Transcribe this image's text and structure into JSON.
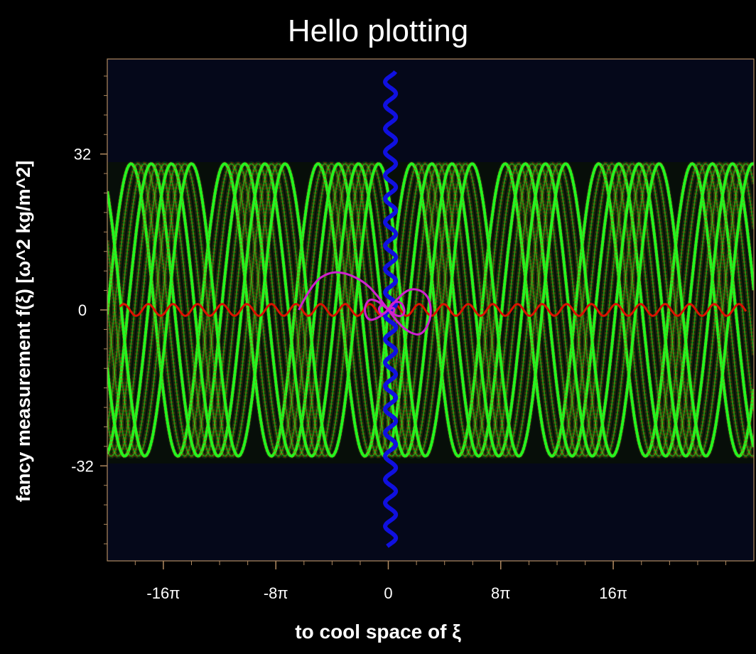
{
  "chart_data": {
    "type": "line",
    "title": "Hello plotting",
    "xlabel": "to cool space of ξ",
    "ylabel": "fancy measurement f(ξ) [ω^2 kg/m^2]",
    "xlim": [
      -62.8,
      81.7
    ],
    "ylim": [
      -51.5,
      51.5
    ],
    "xticks": [
      {
        "value": -50.27,
        "label": "-16π"
      },
      {
        "value": -25.13,
        "label": "-8π"
      },
      {
        "value": 0,
        "label": "0"
      },
      {
        "value": 25.13,
        "label": "8π"
      },
      {
        "value": 50.27,
        "label": "16π"
      }
    ],
    "yticks": [
      {
        "value": 32,
        "label": "32"
      },
      {
        "value": 0,
        "label": "0"
      },
      {
        "value": -32,
        "label": "-32"
      }
    ],
    "grid": false,
    "legend": "none",
    "colors": {
      "background": "#000000",
      "plot_area": "#05081a",
      "frame": "#b08a60",
      "green": "#22ff22",
      "red": "#dd1100",
      "blue": "#1010e0",
      "magenta": "#d020d0"
    },
    "series": [
      {
        "style": "green-red sine bundle",
        "amplitude": 30,
        "period": 20.9,
        "x_range": [
          -62.8,
          81.7
        ],
        "phase_shifts": [
          0,
          1.5,
          3.0,
          4.5,
          6.0,
          7.5,
          9.0,
          10.5,
          12.0,
          13.5
        ]
      },
      {
        "style": "red small wave",
        "amplitude": 1.2,
        "period": 5.5,
        "x_range": [
          -60,
          80
        ]
      },
      {
        "style": "blue vertical wave",
        "x_center": 0.5,
        "x_amplitude": 1.2,
        "y_range": [
          -48.5,
          49
        ]
      },
      {
        "style": "magenta loop curve",
        "points": [
          [
            -20,
            0
          ],
          [
            -17,
            5.5
          ],
          [
            -13,
            7.9
          ],
          [
            -9,
            7.5
          ],
          [
            -5,
            5.5
          ],
          [
            -2.5,
            3
          ],
          [
            0,
            0
          ],
          [
            2.5,
            -3
          ],
          [
            5,
            -4.8
          ],
          [
            7.5,
            -5.2
          ],
          [
            9.5,
            -2
          ],
          [
            9.5,
            1.5
          ],
          [
            8,
            3.8
          ],
          [
            5,
            4.5
          ],
          [
            2.5,
            2.8
          ],
          [
            0,
            0
          ],
          [
            -2.5,
            -1.8
          ],
          [
            -4.5,
            -2.2
          ],
          [
            -5.5,
            0
          ],
          [
            -4.5,
            2.2
          ],
          [
            -2.5,
            2.0
          ],
          [
            0,
            0
          ],
          [
            2.2,
            -1.5
          ],
          [
            3.8,
            -0.8
          ],
          [
            3.2,
            1.5
          ],
          [
            1.2,
            1.8
          ],
          [
            0,
            0
          ],
          [
            -1.5,
            -1.2
          ],
          [
            -2.3,
            0.3
          ],
          [
            -1.3,
            1.2
          ],
          [
            0,
            0
          ],
          [
            1.2,
            -0.8
          ],
          [
            1.4,
            0.6
          ],
          [
            0,
            0
          ]
        ]
      }
    ]
  }
}
